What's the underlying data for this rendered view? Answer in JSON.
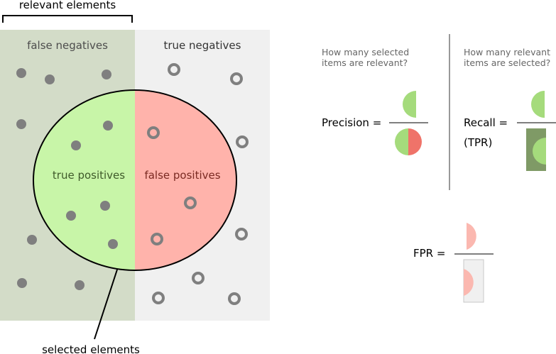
{
  "labels": {
    "relevant_elements": "relevant elements",
    "false_negatives": "false negatives",
    "true_negatives": "true negatives",
    "true_positives": "true positives",
    "false_positives": "false positives",
    "selected_elements": "selected elements"
  },
  "precision": {
    "question_line1": "How many selected",
    "question_line2": "items are relevant?",
    "label": "Precision ="
  },
  "recall": {
    "question_line1": "How many relevant",
    "question_line2": "items are selected?",
    "label": "Recall =",
    "sublabel": "(TPR)"
  },
  "fpr": {
    "label": "FPR ="
  },
  "colors": {
    "relevant_bg": "#d3dcc8",
    "irrelevant_bg": "#f0f0f0",
    "true_positive": "#c8f5a8",
    "false_positive": "#ffb3ab",
    "dot": "#7f7f7f",
    "green_icon": "#a5db7c",
    "red_icon": "#ef7369",
    "dark_green": "#7f9a66",
    "pink_icon": "#fbb8b0"
  }
}
